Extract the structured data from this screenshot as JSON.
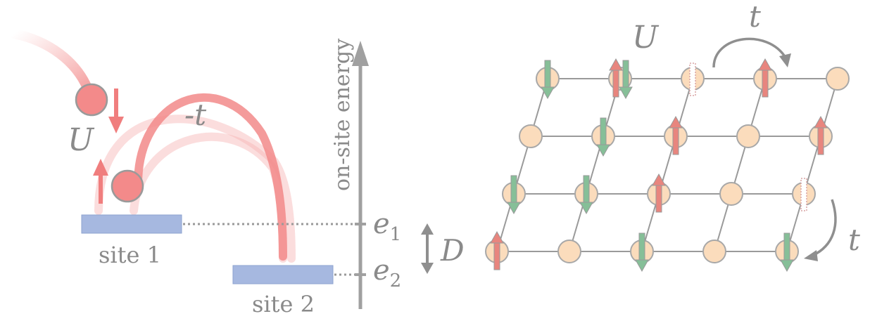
{
  "left_panel": {
    "site1_label": "site 1",
    "site2_label": "site 2",
    "hopping_label": "-t",
    "interaction_label": "U",
    "energy_axis_label": "on-site energy",
    "e1_label": "e",
    "e1_sub": "1",
    "e2_label": "e",
    "e2_sub": "2",
    "offset_label": "D"
  },
  "right_panel": {
    "interaction_label": "U",
    "hop_top_label": "t",
    "hop_side_label": "t",
    "lattice": {
      "rows": 4,
      "cols": 5,
      "spins": [
        {
          "row": 0,
          "col": 0,
          "spins": [
            "down"
          ]
        },
        {
          "row": 0,
          "col": 1,
          "spins": [
            "up",
            "down"
          ]
        },
        {
          "row": 0,
          "col": 2,
          "spins": [
            "dotted"
          ]
        },
        {
          "row": 0,
          "col": 3,
          "spins": [
            "up"
          ]
        },
        {
          "row": 1,
          "col": 1,
          "spins": [
            "down"
          ]
        },
        {
          "row": 1,
          "col": 2,
          "spins": [
            "up"
          ]
        },
        {
          "row": 1,
          "col": 4,
          "spins": [
            "up"
          ]
        },
        {
          "row": 2,
          "col": 0,
          "spins": [
            "down"
          ]
        },
        {
          "row": 2,
          "col": 1,
          "spins": [
            "down"
          ]
        },
        {
          "row": 2,
          "col": 2,
          "spins": [
            "up"
          ]
        },
        {
          "row": 2,
          "col": 4,
          "spins": [
            "dotted"
          ]
        },
        {
          "row": 3,
          "col": 0,
          "spins": [
            "up"
          ]
        },
        {
          "row": 3,
          "col": 2,
          "spins": [
            "down"
          ]
        },
        {
          "row": 3,
          "col": 4,
          "spins": [
            "down"
          ]
        }
      ]
    }
  },
  "colors": {
    "site_block": "#a6b8e0",
    "particle": "#f38a8a",
    "spin_up": "#e8857e",
    "spin_down": "#86bf98",
    "lattice_node": "#fbdcbc",
    "lines": "#9a9a9a",
    "axis": "#a0a0a0"
  }
}
